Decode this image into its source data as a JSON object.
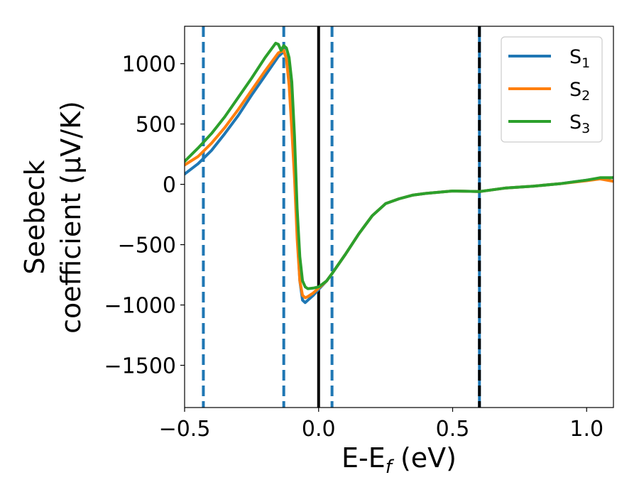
{
  "chart_data": {
    "type": "line",
    "xlabel": "E-E_f (eV)",
    "ylabel_line1": "Seebeck",
    "ylabel_line2": "coefficient  (μV/K)",
    "xlim": [
      -0.5,
      1.1
    ],
    "ylim": [
      -1850,
      1310
    ],
    "xticks": [
      -0.5,
      0.0,
      0.5,
      1.0
    ],
    "xtick_labels": [
      "−0.5",
      "0.0",
      "0.5",
      "1.0"
    ],
    "yticks": [
      -1500,
      -1000,
      -500,
      0,
      500,
      1000
    ],
    "ytick_labels": [
      "−1500",
      "−1000",
      "−500",
      "0",
      "500",
      "1000"
    ],
    "grid": false,
    "legend_position": "top-right",
    "vertical_lines": [
      {
        "x": -0.43,
        "style": "dashed",
        "color": "#1f77b4"
      },
      {
        "x": -0.13,
        "style": "dashed",
        "color": "#1f77b4"
      },
      {
        "x": 0.0,
        "style": "solid",
        "color": "#000000"
      },
      {
        "x": 0.05,
        "style": "dashed",
        "color": "#1f77b4"
      },
      {
        "x": 0.6,
        "style": "solid",
        "color": "#1f77b4"
      },
      {
        "x": 0.6,
        "style": "dashed",
        "color": "#000000"
      }
    ],
    "series": [
      {
        "name": "S1",
        "color": "#1f77b4",
        "points": [
          [
            -0.5,
            85
          ],
          [
            -0.45,
            170
          ],
          [
            -0.4,
            280
          ],
          [
            -0.35,
            420
          ],
          [
            -0.3,
            570
          ],
          [
            -0.25,
            740
          ],
          [
            -0.2,
            900
          ],
          [
            -0.15,
            1060
          ],
          [
            -0.13,
            1100
          ],
          [
            -0.12,
            1050
          ],
          [
            -0.11,
            850
          ],
          [
            -0.1,
            500
          ],
          [
            -0.09,
            100
          ],
          [
            -0.08,
            -400
          ],
          [
            -0.07,
            -800
          ],
          [
            -0.06,
            -960
          ],
          [
            -0.05,
            -980
          ],
          [
            -0.04,
            -960
          ],
          [
            -0.02,
            -920
          ],
          [
            0.0,
            -870
          ],
          [
            0.03,
            -800
          ],
          [
            0.05,
            -740
          ],
          [
            0.1,
            -580
          ],
          [
            0.15,
            -410
          ],
          [
            0.2,
            -260
          ],
          [
            0.25,
            -160
          ],
          [
            0.3,
            -120
          ],
          [
            0.35,
            -90
          ],
          [
            0.4,
            -75
          ],
          [
            0.5,
            -55
          ],
          [
            0.6,
            -60
          ],
          [
            0.7,
            -30
          ],
          [
            0.8,
            -15
          ],
          [
            0.9,
            5
          ],
          [
            1.0,
            35
          ],
          [
            1.05,
            50
          ],
          [
            1.1,
            55
          ]
        ]
      },
      {
        "name": "S2",
        "color": "#ff7f0e",
        "points": [
          [
            -0.5,
            160
          ],
          [
            -0.45,
            230
          ],
          [
            -0.4,
            340
          ],
          [
            -0.35,
            470
          ],
          [
            -0.3,
            620
          ],
          [
            -0.25,
            780
          ],
          [
            -0.2,
            940
          ],
          [
            -0.15,
            1090
          ],
          [
            -0.13,
            1110
          ],
          [
            -0.12,
            1040
          ],
          [
            -0.11,
            820
          ],
          [
            -0.1,
            450
          ],
          [
            -0.09,
            50
          ],
          [
            -0.08,
            -450
          ],
          [
            -0.07,
            -800
          ],
          [
            -0.06,
            -920
          ],
          [
            -0.05,
            -940
          ],
          [
            -0.04,
            -930
          ],
          [
            -0.02,
            -900
          ],
          [
            0.0,
            -860
          ],
          [
            0.03,
            -800
          ],
          [
            0.05,
            -740
          ],
          [
            0.1,
            -580
          ],
          [
            0.15,
            -410
          ],
          [
            0.2,
            -260
          ],
          [
            0.25,
            -160
          ],
          [
            0.3,
            -120
          ],
          [
            0.35,
            -90
          ],
          [
            0.4,
            -75
          ],
          [
            0.5,
            -55
          ],
          [
            0.6,
            -60
          ],
          [
            0.7,
            -30
          ],
          [
            0.8,
            -15
          ],
          [
            0.9,
            5
          ],
          [
            1.0,
            30
          ],
          [
            1.05,
            45
          ],
          [
            1.1,
            25
          ]
        ]
      },
      {
        "name": "S3",
        "color": "#2ca02c",
        "points": [
          [
            -0.5,
            190
          ],
          [
            -0.45,
            300
          ],
          [
            -0.4,
            420
          ],
          [
            -0.35,
            560
          ],
          [
            -0.3,
            720
          ],
          [
            -0.25,
            880
          ],
          [
            -0.2,
            1050
          ],
          [
            -0.16,
            1170
          ],
          [
            -0.15,
            1160
          ],
          [
            -0.14,
            1110
          ],
          [
            -0.13,
            1150
          ],
          [
            -0.12,
            1130
          ],
          [
            -0.11,
            1050
          ],
          [
            -0.1,
            850
          ],
          [
            -0.09,
            400
          ],
          [
            -0.08,
            -200
          ],
          [
            -0.07,
            -600
          ],
          [
            -0.06,
            -800
          ],
          [
            -0.05,
            -850
          ],
          [
            -0.04,
            -865
          ],
          [
            -0.02,
            -860
          ],
          [
            0.0,
            -850
          ],
          [
            0.03,
            -800
          ],
          [
            0.05,
            -740
          ],
          [
            0.1,
            -580
          ],
          [
            0.15,
            -410
          ],
          [
            0.2,
            -260
          ],
          [
            0.25,
            -160
          ],
          [
            0.3,
            -120
          ],
          [
            0.35,
            -90
          ],
          [
            0.4,
            -75
          ],
          [
            0.5,
            -55
          ],
          [
            0.6,
            -60
          ],
          [
            0.7,
            -30
          ],
          [
            0.8,
            -15
          ],
          [
            0.9,
            5
          ],
          [
            1.0,
            35
          ],
          [
            1.05,
            55
          ],
          [
            1.1,
            55
          ]
        ]
      }
    ],
    "legend": [
      {
        "label": "S",
        "sub": "1",
        "color": "#1f77b4"
      },
      {
        "label": "S",
        "sub": "2",
        "color": "#ff7f0e"
      },
      {
        "label": "S",
        "sub": "3",
        "color": "#2ca02c"
      }
    ]
  }
}
